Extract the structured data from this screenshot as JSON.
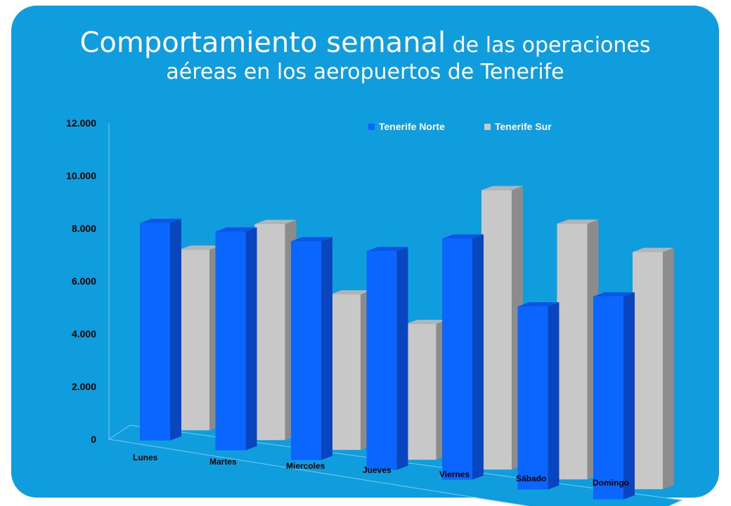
{
  "slide": {
    "title_main": "Comportamiento semanal",
    "title_rest": " de las operaciones",
    "title_line2": "aéreas en los aeropuertos de Tenerife"
  },
  "colors": {
    "background": "#0f9ddd",
    "norte_front": "#0a66ff",
    "norte_side": "#0a45c0",
    "norte_top": "#0a56e6",
    "sur_front": "#c8c8c8",
    "sur_side": "#8c8c8c",
    "sur_top": "#b4b4b4"
  },
  "chart_data": {
    "type": "bar",
    "title": "",
    "xlabel": "",
    "ylabel": "",
    "ylim": [
      0,
      12000
    ],
    "y_ticks": [
      0,
      2000,
      4000,
      6000,
      8000,
      10000,
      12000
    ],
    "y_tick_labels": [
      "0",
      "2.000",
      "4.000",
      "6.000",
      "8.000",
      "10.000",
      "12.000"
    ],
    "categories": [
      "Lunes",
      "Martes",
      "Miercoles",
      "Jueves",
      "Viernes",
      "Sábado",
      "Domingo"
    ],
    "series": [
      {
        "name": "Tenerife Norte",
        "values": [
          8250,
          8300,
          8300,
          8300,
          9150,
          6950,
          7700
        ]
      },
      {
        "name": "Tenerife Sur",
        "values": [
          6850,
          8200,
          5900,
          5150,
          10600,
          9700,
          9000
        ]
      }
    ],
    "legend_position": "top-right",
    "grid": false
  }
}
